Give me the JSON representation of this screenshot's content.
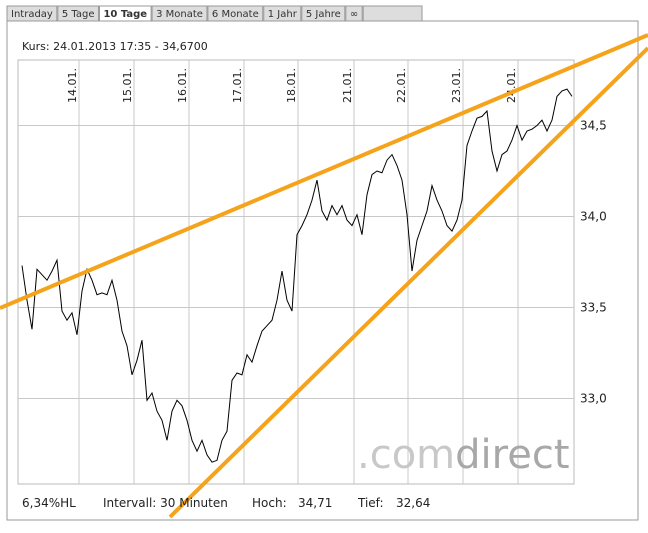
{
  "tabs": [
    "Intraday",
    "5 Tage",
    "10 Tage",
    "3 Monate",
    "6 Monate",
    "1 Jahr",
    "5 Jahre",
    "∞"
  ],
  "active_tab": 2,
  "chart_data": {
    "type": "line",
    "subtitle": "Kurs: 24.01.2013 17:35 - 34,6700",
    "series": [
      {
        "color": "#000000",
        "values": [
          33.73,
          33.54,
          33.38,
          33.71,
          33.68,
          33.65,
          33.7,
          33.76,
          33.48,
          33.43,
          33.47,
          33.35,
          33.59,
          33.71,
          33.65,
          33.57,
          33.58,
          33.57,
          33.65,
          33.54,
          33.37,
          33.29,
          33.13,
          33.21,
          33.32,
          32.99,
          33.03,
          32.93,
          32.88,
          32.77,
          32.93,
          32.99,
          32.96,
          32.88,
          32.77,
          32.71,
          32.77,
          32.69,
          32.65,
          32.66,
          32.77,
          32.82,
          33.1,
          33.14,
          33.13,
          33.24,
          33.2,
          33.29,
          33.37,
          33.4,
          33.43,
          33.54,
          33.7,
          33.54,
          33.48,
          33.9,
          33.95,
          34.01,
          34.09,
          34.2,
          34.03,
          33.98,
          34.06,
          34.01,
          34.06,
          33.98,
          33.95,
          34.01,
          33.9,
          34.12,
          34.23,
          34.25,
          34.24,
          34.31,
          34.34,
          34.28,
          34.2,
          34.01,
          33.7,
          33.87,
          33.95,
          34.03,
          34.17,
          34.09,
          34.03,
          33.95,
          33.92,
          33.98,
          34.09,
          34.39,
          34.47,
          34.54,
          34.55,
          34.58,
          34.36,
          34.25,
          34.34,
          34.36,
          34.42,
          34.5,
          34.42,
          34.47,
          34.48,
          34.5,
          34.53,
          34.47,
          34.53,
          34.66,
          34.69,
          34.7,
          34.66
        ]
      }
    ],
    "xlim": [
      -0.8,
      110.4
    ],
    "xticks": [
      {
        "value": 11.4,
        "label": "14.01."
      },
      {
        "value": 22.4,
        "label": "15.01."
      },
      {
        "value": 33.4,
        "label": "16.01."
      },
      {
        "value": 44.4,
        "label": "17.01."
      },
      {
        "value": 55.2,
        "label": "18.01."
      },
      {
        "value": 66.4,
        "label": "21.01."
      },
      {
        "value": 77.2,
        "label": "22.01."
      },
      {
        "value": 88.2,
        "label": "23.01."
      },
      {
        "value": 99.2,
        "label": "24.01."
      }
    ],
    "ylim": [
      32.53,
      34.86
    ],
    "yticks": [
      {
        "value": 33.0,
        "label": "33,0"
      },
      {
        "value": 33.5,
        "label": "33,5"
      },
      {
        "value": 34.0,
        "label": "34,0"
      },
      {
        "value": 34.5,
        "label": "34,5"
      }
    ],
    "grid": true,
    "watermark": [
      "com",
      "direct"
    ],
    "watermark_dot": ".",
    "footer": [
      "6,34%HL",
      "Intervall: 30 Minuten",
      "Hoch:",
      "34,71",
      "Tief:",
      "32,64"
    ]
  }
}
